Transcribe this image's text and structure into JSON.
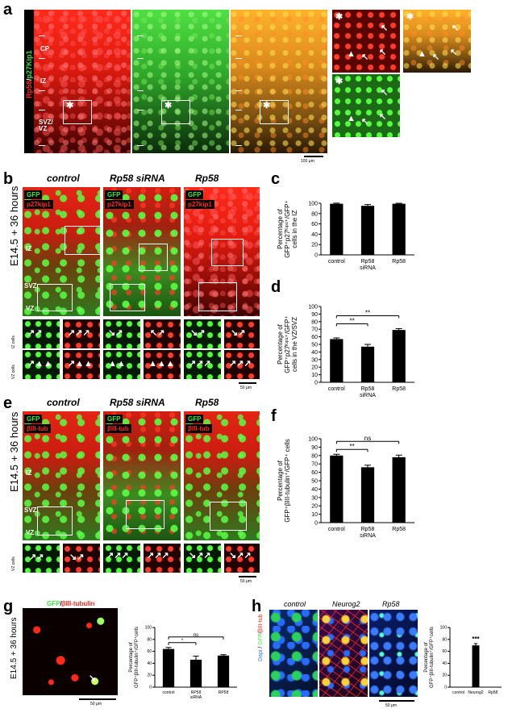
{
  "panels": {
    "a": {
      "label": "a",
      "side_label_red": "Rp58",
      "side_label_green": "p27Kip1",
      "zones": [
        "CP",
        "IZ",
        "SVZ/ VZ"
      ],
      "scale": "100 μm"
    },
    "b": {
      "label": "b",
      "conditions": [
        "control",
        "Rp58 siRNA",
        "Rp58"
      ],
      "side_label": "E14.5 + 36 hours",
      "channel_green": "GFP",
      "channel_red": "p27kip1",
      "zones": [
        "IZ",
        "SVZ",
        "VZ"
      ],
      "row_labels": [
        "IZ cells",
        "VZ cells"
      ],
      "scale": "50 μm"
    },
    "e": {
      "label": "e",
      "conditions": [
        "control",
        "Rp58 siRNA",
        "Rp58"
      ],
      "side_label": "E14.5 + 36 hours",
      "channel_green": "GFP",
      "channel_red": "βIII-tub",
      "zones": [
        "IZ",
        "SVZ",
        "VZ"
      ],
      "row_labels": [
        "VZ cells"
      ],
      "scale": "50 μm"
    },
    "g": {
      "label": "g",
      "title_green": "GFP",
      "title_red": "βIII-tubulin",
      "side_label": "E14.5 + 36 hours",
      "scale": "50 μm"
    },
    "h": {
      "label": "h",
      "conditions": [
        "control",
        "Neurog2",
        "Rp58"
      ],
      "side_blue": "Dapi",
      "side_green": "GFP",
      "side_red": "βIII-tub",
      "scale": "50 μm"
    }
  },
  "chart_data": [
    {
      "id": "c",
      "label": "c",
      "type": "bar",
      "categories": [
        "control",
        "Rp58\nsiRNA",
        "Rp58"
      ],
      "values": [
        99,
        95,
        99
      ],
      "errors": [
        1.2,
        2.5,
        1.0
      ],
      "ylabel": "Percentage of\nGFP⁺p27ᴷᶦᵖ¹⁺/GFP⁺\ncells in the IZ",
      "ylim": [
        0,
        100
      ],
      "yticks": [
        0,
        20,
        40,
        60,
        80,
        100
      ],
      "significance": []
    },
    {
      "id": "d",
      "label": "d",
      "type": "bar",
      "categories": [
        "control",
        "Rp58\nsiRNA",
        "Rp58"
      ],
      "values": [
        57,
        47,
        69
      ],
      "errors": [
        1.5,
        3.0,
        1.8
      ],
      "ylabel": "Percentage of\nGFP⁺p27ᴷᶦᵖ¹⁺/GFP⁺\ncells in the VZ/SVZ",
      "ylim": [
        0,
        100
      ],
      "yticks": [
        0,
        10,
        20,
        30,
        40,
        50,
        60,
        70,
        80,
        90,
        100
      ],
      "significance": [
        {
          "from": 0,
          "to": 1,
          "text": "**"
        },
        {
          "from": 0,
          "to": 2,
          "text": "**"
        }
      ]
    },
    {
      "id": "f",
      "label": "f",
      "type": "bar",
      "categories": [
        "control",
        "Rp58\nsiRNA",
        "Rp58"
      ],
      "values": [
        80,
        66,
        78
      ],
      "errors": [
        1.5,
        2.5,
        2.5
      ],
      "ylabel": "Percentage of\nGFP⁺βIII-tubulin⁺/GFP⁺ cells",
      "ylim": [
        0,
        100
      ],
      "yticks": [
        0,
        10,
        20,
        30,
        40,
        50,
        60,
        70,
        80,
        90,
        100
      ],
      "significance": [
        {
          "from": 0,
          "to": 1,
          "text": "**"
        },
        {
          "from": 0,
          "to": 2,
          "text": "ns"
        }
      ]
    },
    {
      "id": "g",
      "label": "g",
      "type": "bar",
      "categories": [
        "control",
        "RP58\nsiRNA",
        "RP58"
      ],
      "values": [
        64,
        46,
        53
      ],
      "errors": [
        2.5,
        6.0,
        1.5
      ],
      "ylabel": "Percentage of\nGFP⁺βIII-tubulin⁺/GFP⁺cells",
      "ylim": [
        0,
        100
      ],
      "yticks": [
        0,
        20,
        40,
        60,
        80,
        100
      ],
      "significance": [
        {
          "from": 0,
          "to": 1,
          "text": "*"
        },
        {
          "from": 0,
          "to": 2,
          "text": "ns"
        }
      ]
    },
    {
      "id": "h",
      "label": "h",
      "type": "bar",
      "categories": [
        "control",
        "Neurog2",
        "Rp58"
      ],
      "values": [
        0,
        70,
        0
      ],
      "errors": [
        0,
        3.0,
        0
      ],
      "ylabel": "Percentage of\nGFP⁺βIII-tubulin⁺/GFP⁺cells",
      "ylim": [
        0,
        100
      ],
      "yticks": [
        0,
        20,
        40,
        60,
        80,
        100
      ],
      "significance": [
        {
          "bar": 1,
          "text": "***"
        }
      ]
    }
  ]
}
